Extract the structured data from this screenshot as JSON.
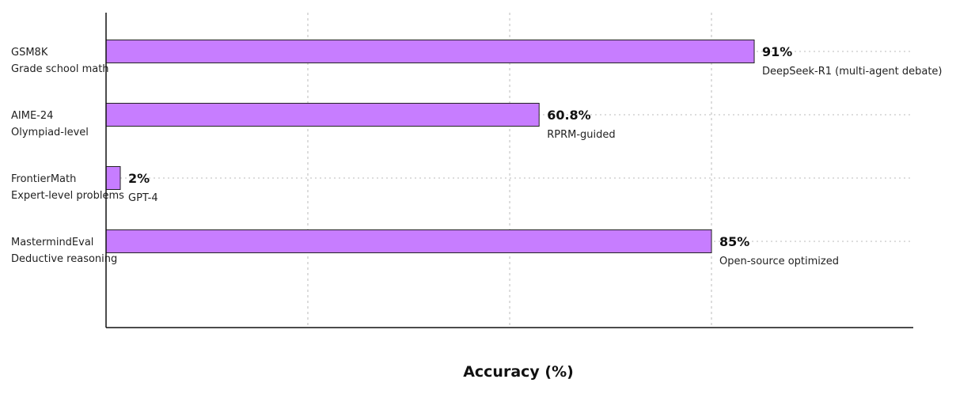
{
  "chart_data": {
    "type": "bar",
    "orientation": "horizontal",
    "categories": [
      "GSM8K",
      "AIME-24",
      "FrontierMath",
      "MastermindEval"
    ],
    "subtitles": [
      "Grade school math",
      "Olympiad-level",
      "Expert-level problems",
      "Deductive reasoning"
    ],
    "values": [
      91,
      60.8,
      2,
      85
    ],
    "value_labels": [
      "91%",
      "60.8%",
      "2%",
      "85%"
    ],
    "annotations": [
      "DeepSeek-R1 (multi-agent debate)",
      "RPRM-guided",
      "GPT-4",
      "Open-source optimized"
    ],
    "xlabel": "Accuracy (%)",
    "xlim": [
      0,
      113.33
    ],
    "grid_x": [
      28.33,
      56.67,
      85
    ],
    "grid": true,
    "colors": {
      "bar": "#c77dff",
      "bar_stroke": "#222222",
      "grid": "#bbbbbb",
      "axis": "#111111"
    }
  }
}
